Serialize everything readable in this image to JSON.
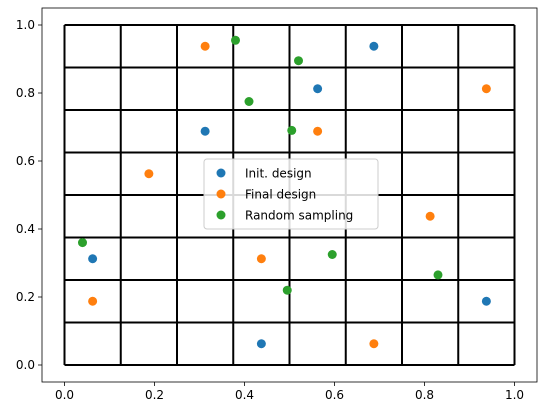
{
  "chart_data": {
    "type": "scatter",
    "title": "",
    "xlabel": "",
    "ylabel": "",
    "xlim": [
      -0.05,
      1.05
    ],
    "ylim": [
      -0.05,
      1.05
    ],
    "xticks": [
      "0.0",
      "0.2",
      "0.4",
      "0.6",
      "0.8",
      "1.0"
    ],
    "yticks": [
      "0.0",
      "0.2",
      "0.4",
      "0.6",
      "0.8",
      "1.0"
    ],
    "grid_divisions": 8,
    "grid": true,
    "legend_position": "center",
    "series": [
      {
        "name": "Init. design",
        "color": "#1f77b4",
        "points": [
          {
            "x": 0.0625,
            "y": 0.3125
          },
          {
            "x": 0.3125,
            "y": 0.6875
          },
          {
            "x": 0.4375,
            "y": 0.0625
          },
          {
            "x": 0.5625,
            "y": 0.8125
          },
          {
            "x": 0.6875,
            "y": 0.9375
          },
          {
            "x": 0.9375,
            "y": 0.1875
          }
        ]
      },
      {
        "name": "Final design",
        "color": "#ff7f0e",
        "points": [
          {
            "x": 0.0625,
            "y": 0.1875
          },
          {
            "x": 0.1875,
            "y": 0.5625
          },
          {
            "x": 0.3125,
            "y": 0.9375
          },
          {
            "x": 0.4375,
            "y": 0.3125
          },
          {
            "x": 0.5625,
            "y": 0.6875
          },
          {
            "x": 0.6875,
            "y": 0.0625
          },
          {
            "x": 0.8125,
            "y": 0.4375
          },
          {
            "x": 0.9375,
            "y": 0.8125
          }
        ]
      },
      {
        "name": "Random sampling",
        "color": "#2ca02c",
        "points": [
          {
            "x": 0.04,
            "y": 0.36
          },
          {
            "x": 0.38,
            "y": 0.955
          },
          {
            "x": 0.41,
            "y": 0.775
          },
          {
            "x": 0.495,
            "y": 0.22
          },
          {
            "x": 0.505,
            "y": 0.69
          },
          {
            "x": 0.52,
            "y": 0.895
          },
          {
            "x": 0.595,
            "y": 0.325
          },
          {
            "x": 0.83,
            "y": 0.265
          }
        ]
      }
    ]
  }
}
